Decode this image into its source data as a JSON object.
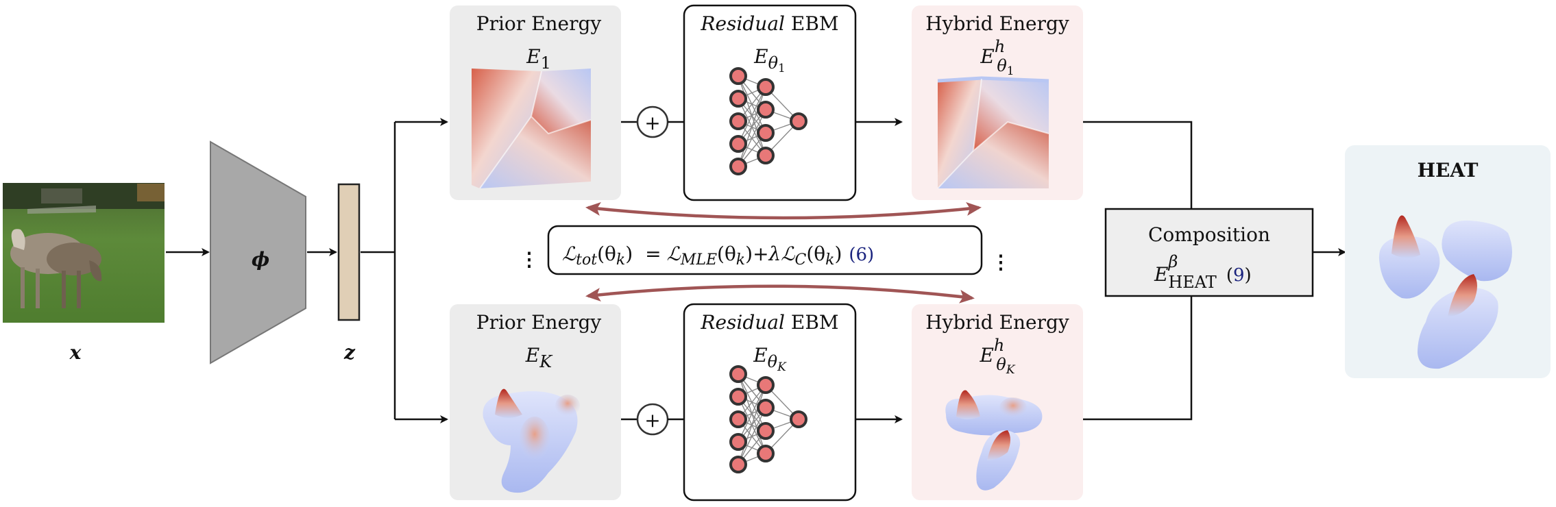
{
  "input": {
    "var": "x"
  },
  "encoder": {
    "symbol": "ϕ"
  },
  "latent": {
    "var": "z"
  },
  "top_row": {
    "prior": {
      "title": "Prior Energy",
      "symbol": "E",
      "sub": "1"
    },
    "plus": "+",
    "residual": {
      "title_italic": "Residual",
      "title_rest": " EBM",
      "symbol": "E",
      "sub": "θ",
      "subsub": "1"
    },
    "hybrid": {
      "title": "Hybrid Energy",
      "symbol": "E",
      "sup": "h",
      "sub": "θ",
      "subsub": "1"
    }
  },
  "bottom_row": {
    "prior": {
      "title": "Prior Energy",
      "symbol": "E",
      "sub": "K"
    },
    "plus": "+",
    "residual": {
      "title_italic": "Residual",
      "title_rest": " EBM",
      "symbol": "E",
      "sub": "θ",
      "subsub": "K"
    },
    "hybrid": {
      "title": "Hybrid Energy",
      "symbol": "E",
      "sup": "h",
      "sub": "θ",
      "subsub": "K"
    }
  },
  "loss": {
    "lhs": "ℒ",
    "lhs_sub": "tot",
    "lhs_arg": "(θ",
    "lhs_arg_sub": "k",
    "lhs_close": ")",
    "eq": "=",
    "t1": "ℒ",
    "t1_sub": "MLE",
    "t1_arg": "(θ",
    "t1_arg_sub": "k",
    "t1_close": ")",
    "plus": "+",
    "t2_lambda": "λ",
    "t2": "ℒ",
    "t2_sub": "C",
    "t2_arg": "(θ",
    "t2_arg_sub": "k",
    "t2_close": ")",
    "ref": "(6)"
  },
  "dots": "⋮",
  "composition": {
    "title": "Composition",
    "symbol": "E",
    "sup": "β",
    "sub": "HEAT",
    "ref_open": "(",
    "ref_num": "9",
    "ref_close": ")"
  },
  "output": {
    "title": "HEAT"
  },
  "colors": {
    "prior_bg": "#ececec",
    "hybrid_bg": "#fbeeee",
    "heat_bg": "#edf3f6",
    "link_arrow": "#a05555",
    "node_fill": "#e87878",
    "node_stroke": "#333333",
    "latent_fill": "#e0cfb6",
    "encoder_fill": "#a8a8a8",
    "ref_blue": "#1a237e"
  }
}
